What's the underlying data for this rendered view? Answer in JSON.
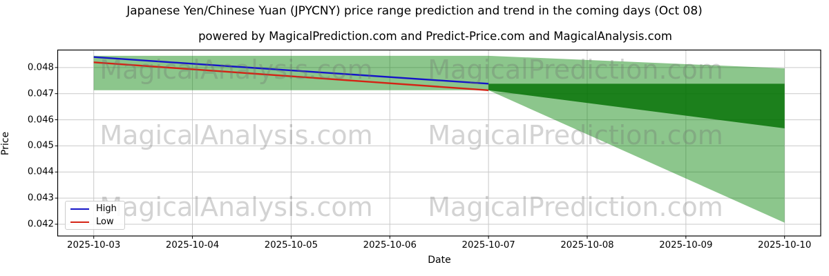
{
  "title": "Japanese Yen/Chinese Yuan (JPYCNY) price range prediction and trend in the coming days (Oct 08)",
  "subtitle": "powered by MagicalPrediction.com and Predict-Price.com and MagicalAnalysis.com",
  "watermarks": {
    "left": "MagicalAnalysis.com",
    "right": "MagicalPrediction.com"
  },
  "axes": {
    "x_label": "Date",
    "y_label": "Price"
  },
  "legend": {
    "entries": [
      {
        "label": "High",
        "color": "#1414c8"
      },
      {
        "label": "Low",
        "color": "#d42314"
      }
    ]
  },
  "colors": {
    "band_light": "rgba(0,128,0,0.45)",
    "band_dark": "rgba(0,110,0,0.80)",
    "high_line": "#1414c8",
    "low_line": "#d42314",
    "grid": "#c9c9c9",
    "spine": "#000000"
  },
  "chart_data": {
    "type": "line",
    "title": "Japanese Yen/Chinese Yuan (JPYCNY) price range prediction and trend in the coming days (Oct 08)",
    "xlabel": "Date",
    "ylabel": "Price",
    "x": [
      "2025-10-03",
      "2025-10-04",
      "2025-10-05",
      "2025-10-06",
      "2025-10-07",
      "2025-10-08",
      "2025-10-09",
      "2025-10-10"
    ],
    "y_ticks": [
      0.048,
      0.047,
      0.046,
      0.045,
      0.044,
      0.043,
      0.042
    ],
    "ylim": [
      0.04155,
      0.04867
    ],
    "grid": true,
    "legend_position": "lower left",
    "series": [
      {
        "name": "High",
        "color_key": "high_line",
        "x": [
          "2025-10-03",
          "2025-10-07"
        ],
        "values": [
          0.0484,
          0.04738
        ]
      },
      {
        "name": "Low",
        "color_key": "low_line",
        "x": [
          "2025-10-03",
          "2025-10-07"
        ],
        "values": [
          0.0482,
          0.04713
        ]
      }
    ],
    "bands": [
      {
        "name": "historical-range",
        "color_key": "band_light",
        "x": [
          "2025-10-03",
          "2025-10-07"
        ],
        "top": [
          0.04845,
          0.04845
        ],
        "bottom": [
          0.04713,
          0.04713
        ]
      },
      {
        "name": "prediction-outer",
        "color_key": "band_light",
        "x": [
          "2025-10-07",
          "2025-10-10"
        ],
        "top": [
          0.04845,
          0.04797
        ],
        "bottom": [
          0.04713,
          0.04206
        ]
      },
      {
        "name": "prediction-inner",
        "color_key": "band_dark",
        "x": [
          "2025-10-07",
          "2025-10-10"
        ],
        "top": [
          0.04738,
          0.04738
        ],
        "bottom": [
          0.04713,
          0.04567
        ]
      }
    ]
  }
}
